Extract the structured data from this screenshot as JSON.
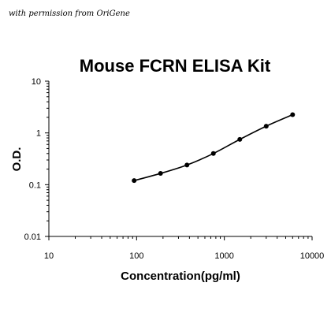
{
  "credit": "with permission from OriGene",
  "chart_data": {
    "type": "scatter",
    "title": "Mouse FCRN ELISA Kit",
    "xlabel": "Concentration(pg/ml)",
    "ylabel": "O.D.",
    "xscale": "log",
    "yscale": "log",
    "xlim": [
      10,
      10000
    ],
    "ylim": [
      0.01,
      10
    ],
    "xticks": [
      "10",
      "100",
      "1000",
      "10000"
    ],
    "yticks": [
      "0.01",
      "0.1",
      "1",
      "10"
    ],
    "grid": false,
    "series": [
      {
        "x": [
          93.75,
          187.5,
          375,
          750,
          1500,
          3000,
          6000
        ],
        "y": [
          0.12,
          0.165,
          0.24,
          0.4,
          0.75,
          1.35,
          2.25
        ]
      }
    ],
    "fit_line": true
  }
}
